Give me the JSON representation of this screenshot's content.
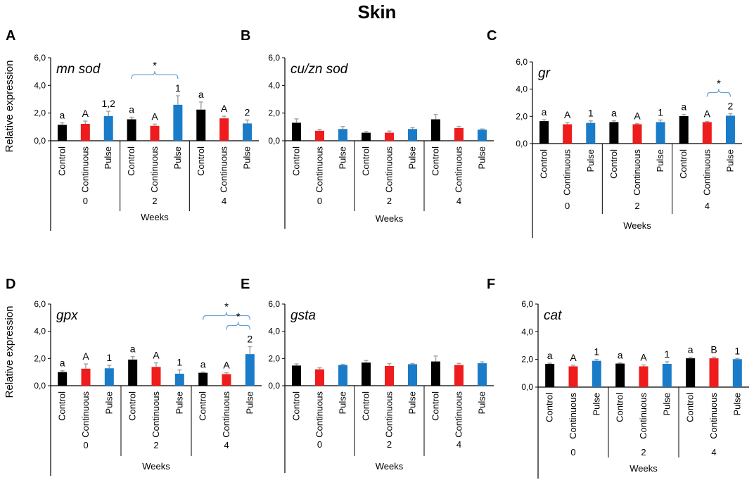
{
  "figure_title": "Skin",
  "x_axis": {
    "groups": [
      "0",
      "2",
      "4"
    ],
    "conditions": [
      "Control",
      "Continuous",
      "Pulse"
    ],
    "label": "Weeks"
  },
  "colors": {
    "Control": "#000000",
    "Continuous": "#ee1c1c",
    "Pulse": "#1a7cc8",
    "error": "#a6a6a6",
    "bracket": "#6a9fd4"
  },
  "chart_data": [
    {
      "panel": "A",
      "gene": "mn sod",
      "type": "bar",
      "ylabel": "Relative expression",
      "ylim": [
        0,
        6
      ],
      "yticks": [
        "0,0",
        "2,0",
        "4,0",
        "6,0"
      ],
      "categories": [
        "Control",
        "Continuous",
        "Pulse"
      ],
      "groups": [
        "0",
        "2",
        "4"
      ],
      "series": [
        {
          "name": "Control",
          "values": [
            1.15,
            1.55,
            2.25
          ],
          "errors": [
            0.15,
            0.15,
            0.55
          ],
          "labels": [
            "a",
            "a",
            "a"
          ]
        },
        {
          "name": "Continuous",
          "values": [
            1.22,
            1.08,
            1.62
          ],
          "errors": [
            0.2,
            0.12,
            0.15
          ],
          "labels": [
            "A",
            "A",
            "A"
          ]
        },
        {
          "name": "Pulse",
          "values": [
            1.78,
            2.6,
            1.25
          ],
          "errors": [
            0.35,
            0.65,
            0.25
          ],
          "labels": [
            "1,2",
            "1",
            "2"
          ]
        }
      ],
      "brackets": [
        {
          "from": [
            1,
            0
          ],
          "to": [
            1,
            2
          ],
          "label": "*",
          "level": 0
        }
      ]
    },
    {
      "panel": "B",
      "gene": "cu/zn sod",
      "type": "bar",
      "ylabel": "",
      "ylim": [
        0,
        6
      ],
      "yticks": [
        "0,0",
        "2,0",
        "4,0",
        "6,0"
      ],
      "categories": [
        "Control",
        "Continuous",
        "Pulse"
      ],
      "groups": [
        "0",
        "2",
        "4"
      ],
      "series": [
        {
          "name": "Control",
          "values": [
            1.3,
            0.58,
            1.55
          ],
          "errors": [
            0.28,
            0.08,
            0.35
          ],
          "labels": [
            "",
            "",
            ""
          ]
        },
        {
          "name": "Continuous",
          "values": [
            0.72,
            0.58,
            0.92
          ],
          "errors": [
            0.1,
            0.12,
            0.12
          ],
          "labels": [
            "",
            "",
            ""
          ]
        },
        {
          "name": "Pulse",
          "values": [
            0.85,
            0.85,
            0.8
          ],
          "errors": [
            0.18,
            0.1,
            0.05
          ],
          "labels": [
            "",
            "",
            ""
          ]
        }
      ],
      "brackets": []
    },
    {
      "panel": "C",
      "gene": "gr",
      "type": "bar",
      "ylabel": "",
      "ylim": [
        0,
        6
      ],
      "yticks": [
        "0,0",
        "2,0",
        "4,0",
        "6,0"
      ],
      "categories": [
        "Control",
        "Continuous",
        "Pulse"
      ],
      "groups": [
        "0",
        "2",
        "4"
      ],
      "series": [
        {
          "name": "Control",
          "values": [
            1.65,
            1.58,
            2.02
          ],
          "errors": [
            0.1,
            0.1,
            0.12
          ],
          "labels": [
            "a",
            "a",
            "a"
          ]
        },
        {
          "name": "Continuous",
          "values": [
            1.42,
            1.42,
            1.58
          ],
          "errors": [
            0.12,
            0.05,
            0.05
          ],
          "labels": [
            "A",
            "A",
            "A"
          ]
        },
        {
          "name": "Pulse",
          "values": [
            1.52,
            1.58,
            2.05
          ],
          "errors": [
            0.15,
            0.15,
            0.15
          ],
          "labels": [
            "1",
            "1",
            "2"
          ]
        }
      ],
      "brackets": [
        {
          "from": [
            2,
            1
          ],
          "to": [
            2,
            2
          ],
          "label": "*",
          "level": 0
        }
      ]
    },
    {
      "panel": "D",
      "gene": "gpx",
      "type": "bar",
      "ylabel": "Relative expression",
      "ylim": [
        0,
        6
      ],
      "yticks": [
        "0,0",
        "2,0",
        "4,0",
        "6,0"
      ],
      "categories": [
        "Control",
        "Continuous",
        "Pulse"
      ],
      "groups": [
        "0",
        "2",
        "4"
      ],
      "series": [
        {
          "name": "Control",
          "values": [
            1.0,
            1.92,
            0.95
          ],
          "errors": [
            0.1,
            0.22,
            0.05
          ],
          "labels": [
            "a",
            "a",
            "a"
          ]
        },
        {
          "name": "Continuous",
          "values": [
            1.25,
            1.38,
            0.85
          ],
          "errors": [
            0.35,
            0.3,
            0.1
          ],
          "labels": [
            "A",
            "A",
            "A"
          ]
        },
        {
          "name": "Pulse",
          "values": [
            1.28,
            0.88,
            2.32
          ],
          "errors": [
            0.22,
            0.28,
            0.55
          ],
          "labels": [
            "1",
            "1",
            "2"
          ]
        }
      ],
      "brackets": [
        {
          "from": [
            2,
            0
          ],
          "to": [
            2,
            2
          ],
          "label": "*",
          "level": 1
        },
        {
          "from": [
            2,
            1
          ],
          "to": [
            2,
            2
          ],
          "label": "*",
          "level": 0
        }
      ]
    },
    {
      "panel": "E",
      "gene": "gsta",
      "type": "bar",
      "ylabel": "",
      "ylim": [
        0,
        6
      ],
      "yticks": [
        "0,0",
        "2,0",
        "4,0",
        "6,0"
      ],
      "categories": [
        "Control",
        "Continuous",
        "Pulse"
      ],
      "groups": [
        "0",
        "2",
        "4"
      ],
      "series": [
        {
          "name": "Control",
          "values": [
            1.48,
            1.7,
            1.78
          ],
          "errors": [
            0.12,
            0.15,
            0.4
          ],
          "labels": [
            "",
            "",
            ""
          ]
        },
        {
          "name": "Continuous",
          "values": [
            1.2,
            1.45,
            1.52
          ],
          "errors": [
            0.12,
            0.18,
            0.12
          ],
          "labels": [
            "",
            "",
            ""
          ]
        },
        {
          "name": "Pulse",
          "values": [
            1.52,
            1.58,
            1.65
          ],
          "errors": [
            0.05,
            0.05,
            0.1
          ],
          "labels": [
            "",
            "",
            ""
          ]
        }
      ],
      "brackets": []
    },
    {
      "panel": "F",
      "gene": "cat",
      "type": "bar",
      "ylabel": "",
      "ylim": [
        0,
        6
      ],
      "yticks": [
        "0,0",
        "2,0",
        "4,0",
        "6,0"
      ],
      "categories": [
        "Control",
        "Continuous",
        "Pulse"
      ],
      "groups": [
        "0",
        "2",
        "4"
      ],
      "series": [
        {
          "name": "Control",
          "values": [
            1.68,
            1.7,
            2.08
          ],
          "errors": [
            0.05,
            0.05,
            0.08
          ],
          "labels": [
            "a",
            "a",
            "a"
          ]
        },
        {
          "name": "Continuous",
          "values": [
            1.5,
            1.5,
            2.08
          ],
          "errors": [
            0.08,
            0.1,
            0.08
          ],
          "labels": [
            "A",
            "A",
            "B"
          ]
        },
        {
          "name": "Pulse",
          "values": [
            1.9,
            1.68,
            2.02
          ],
          "errors": [
            0.1,
            0.15,
            0.05
          ],
          "labels": [
            "1",
            "1",
            "1"
          ]
        }
      ],
      "brackets": []
    }
  ]
}
